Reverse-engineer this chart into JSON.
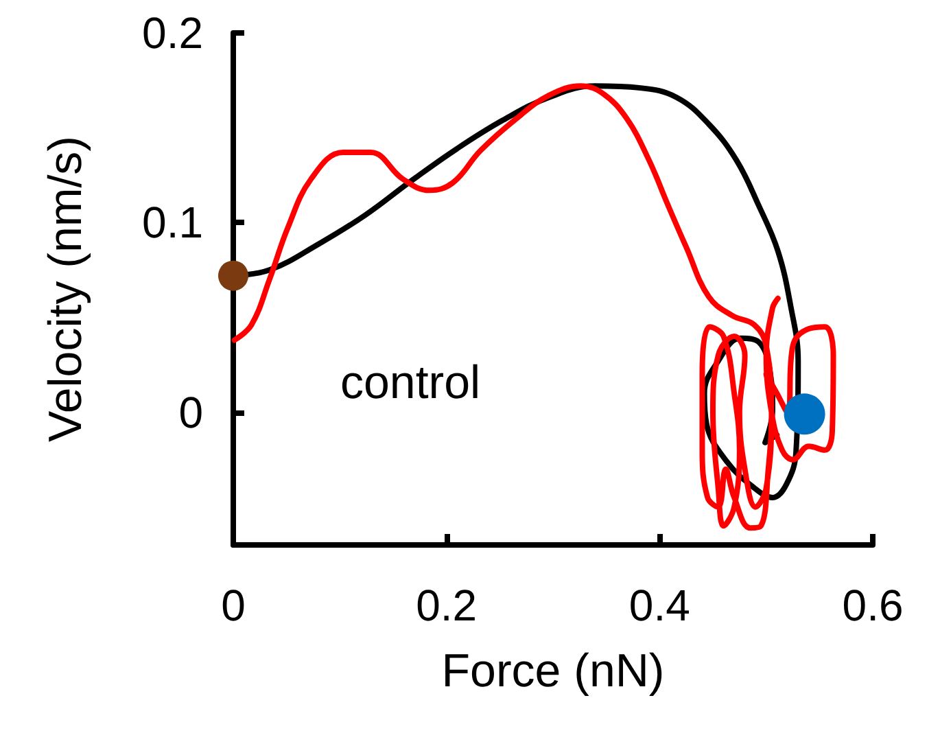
{
  "chart_data": {
    "type": "line",
    "xlabel": "Force (nN)",
    "ylabel": "Velocity (nm/s)",
    "annotations": [
      "control"
    ],
    "xlim": [
      0,
      0.6
    ],
    "xticks": [
      0,
      0.2,
      0.4,
      0.6
    ],
    "ylim": [
      -0.07,
      0.2
    ],
    "yticks": [
      0,
      0.1,
      0.2
    ],
    "grid": false,
    "marker": "none",
    "line_style": "solid",
    "series": [
      {
        "color": "#000000",
        "x": [
          0,
          0.034,
          0.081,
          0.124,
          0.167,
          0.21,
          0.253,
          0.296,
          0.339,
          0.382,
          0.416,
          0.446,
          0.472,
          0.493,
          0.511,
          0.523,
          0.53,
          0.528,
          0.519,
          0.506,
          0.489,
          0.463,
          0.444,
          0.442,
          0.455,
          0.476,
          0.493,
          0.504,
          0.506,
          0.499,
          0.51
        ],
        "values": [
          0.072,
          0.075,
          0.089,
          0.104,
          0.122,
          0.139,
          0.154,
          0.166,
          0.172,
          0.171,
          0.166,
          0.152,
          0.133,
          0.109,
          0.085,
          0.056,
          0.027,
          -0.021,
          -0.038,
          -0.045,
          -0.04,
          -0.026,
          -0.006,
          0.01,
          0.027,
          0.039,
          0.037,
          0.02,
          0.001,
          -0.016,
          -0.012
        ]
      },
      {
        "color": "#ff0000",
        "x": [
          0.001,
          0.017,
          0.034,
          0.051,
          0.073,
          0.103,
          0.129,
          0.159,
          0.184,
          0.206,
          0.232,
          0.266,
          0.296,
          0.326,
          0.347,
          0.369,
          0.39,
          0.408,
          0.425,
          0.446,
          0.468,
          0.489,
          0.5,
          0.505,
          0.5,
          0.49,
          0.48,
          0.475,
          0.48,
          0.47,
          0.455,
          0.45,
          0.455,
          0.46,
          0.47,
          0.475,
          0.47,
          0.46,
          0.447,
          0.44,
          0.44,
          0.445,
          0.455,
          0.462,
          0.47,
          0.485,
          0.495,
          0.502,
          0.505,
          0.5,
          0.51,
          0.52,
          0.525,
          0.54,
          0.555,
          0.563,
          0.562,
          0.555,
          0.54,
          0.525,
          0.515,
          0.505,
          0.5,
          0.506,
          0.511
        ],
        "values": [
          0.038,
          0.046,
          0.07,
          0.097,
          0.123,
          0.137,
          0.137,
          0.123,
          0.117,
          0.121,
          0.138,
          0.155,
          0.167,
          0.172,
          0.168,
          0.155,
          0.133,
          0.109,
          0.087,
          0.061,
          0.051,
          0.046,
          0.035,
          0.0,
          -0.04,
          -0.05,
          -0.03,
          0.0,
          0.03,
          0.04,
          0.03,
          0.0,
          -0.04,
          -0.06,
          -0.05,
          -0.02,
          0.01,
          0.04,
          0.045,
          0.02,
          -0.02,
          -0.045,
          -0.05,
          -0.03,
          -0.045,
          -0.061,
          -0.06,
          -0.03,
          0.0,
          0.02,
          0.01,
          0.0,
          0.035,
          0.044,
          0.045,
          0.03,
          -0.01,
          -0.02,
          -0.018,
          -0.025,
          -0.02,
          0.0,
          0.03,
          0.055,
          0.06
        ]
      },
      {
        "type": "scatter",
        "marker": "circle",
        "color": "#7b3a10",
        "x": [
          0
        ],
        "values": [
          0.072
        ]
      },
      {
        "type": "scatter",
        "marker": "circle",
        "color": "#0070c0",
        "x": [
          0.536
        ],
        "values": [
          -0.001
        ]
      }
    ]
  }
}
